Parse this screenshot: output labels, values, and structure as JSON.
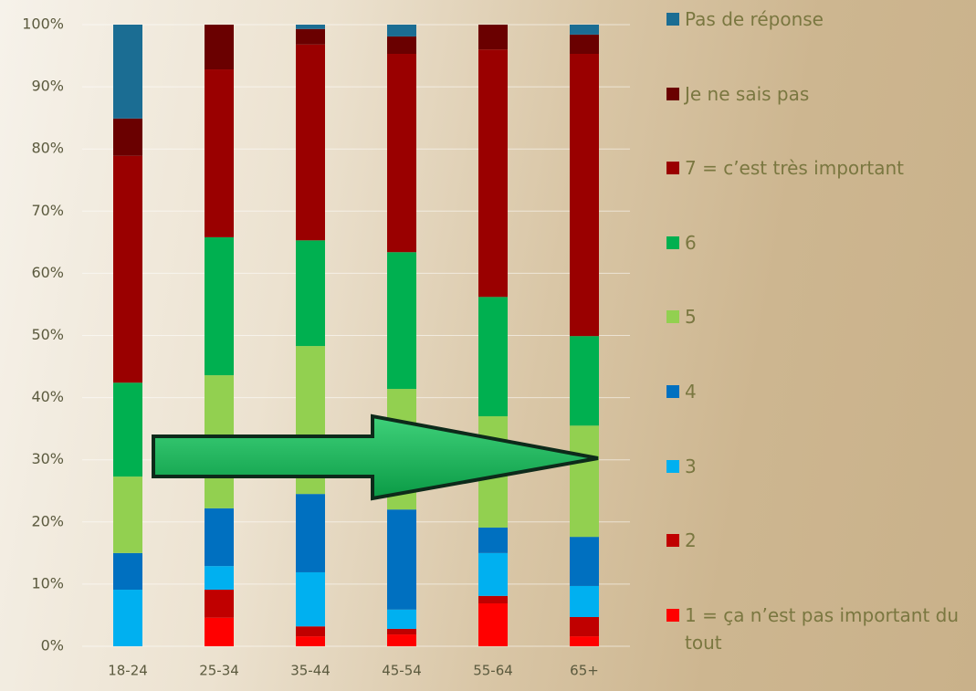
{
  "chart_data": {
    "type": "stacked_bar",
    "categories": [
      "18-24",
      "25-34",
      "35-44",
      "45-54",
      "55-64",
      "65+"
    ],
    "series": [
      {
        "name": "1 = ça n’est pas important du tout",
        "color": "#ff0000",
        "values": [
          0,
          4.6,
          1.6,
          1.9,
          6.9,
          1.6
        ]
      },
      {
        "name": "2",
        "color": "#c00000",
        "values": [
          0,
          4.5,
          1.6,
          0.9,
          1.2,
          3.1
        ]
      },
      {
        "name": "3",
        "color": "#00b0f0",
        "values": [
          9.1,
          3.8,
          8.7,
          3.1,
          6.9,
          5.0
        ]
      },
      {
        "name": "4",
        "color": "#0070c0",
        "values": [
          5.9,
          9.3,
          12.6,
          16.1,
          4.1,
          7.9
        ]
      },
      {
        "name": "5",
        "color": "#92d050",
        "values": [
          12.3,
          21.4,
          23.8,
          19.4,
          17.9,
          17.9
        ]
      },
      {
        "name": "6",
        "color": "#00b050",
        "values": [
          15.1,
          22.2,
          17.0,
          22.0,
          19.2,
          14.4
        ]
      },
      {
        "name": "7 = c’est très important",
        "color": "#9a0000",
        "values": [
          36.5,
          27.0,
          31.5,
          31.9,
          39.8,
          45.4
        ]
      },
      {
        "name": "Je ne sais pas",
        "color": "#6a0000",
        "values": [
          6.0,
          7.2,
          2.5,
          2.8,
          4.0,
          3.1
        ]
      },
      {
        "name": "Pas de réponse",
        "color": "#1b6d93",
        "values": [
          15.1,
          0,
          0.7,
          1.9,
          0,
          1.6
        ]
      }
    ],
    "ylim": [
      0,
      100
    ],
    "yticks": [
      {
        "value": 0,
        "label": "0%"
      },
      {
        "value": 10,
        "label": "10%"
      },
      {
        "value": 20,
        "label": "20%"
      },
      {
        "value": 30,
        "label": "30%"
      },
      {
        "value": 40,
        "label": "40%"
      },
      {
        "value": 50,
        "label": "50%"
      },
      {
        "value": 60,
        "label": "60%"
      },
      {
        "value": 70,
        "label": "70%"
      },
      {
        "value": 80,
        "label": "80%"
      },
      {
        "value": 90,
        "label": "90%"
      },
      {
        "value": 100,
        "label": "100%"
      }
    ],
    "grid": true,
    "legend": "right"
  }
}
